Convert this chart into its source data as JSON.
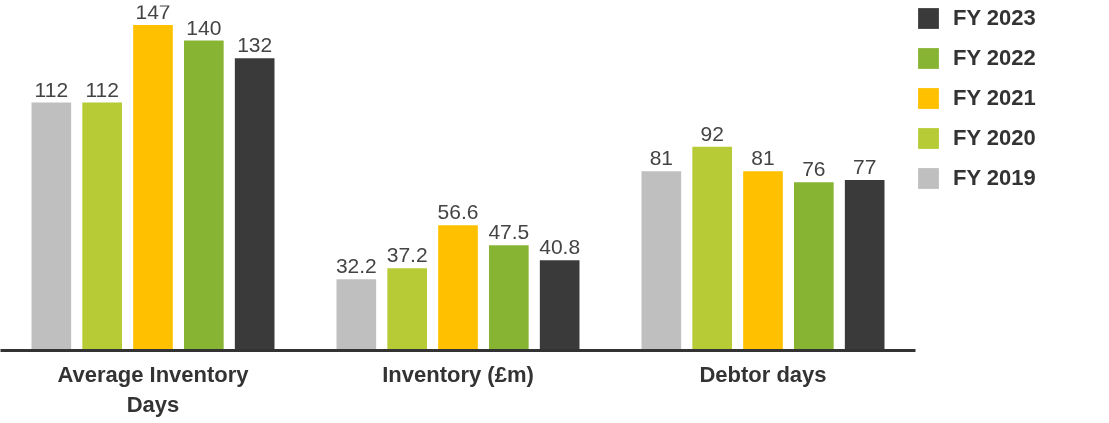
{
  "chart_data": {
    "type": "bar",
    "categories": [
      "Average Inventory Days",
      "Inventory (£m)",
      "Debtor days"
    ],
    "data_labels": true,
    "tick_labels": "x",
    "grid": false,
    "legend": "right",
    "series": [
      {
        "name": "FY 2019",
        "color": "#bfbfbf",
        "values": [
          112,
          32.2,
          81
        ]
      },
      {
        "name": "FY 2020",
        "color": "#b6cb35",
        "values": [
          112,
          37.2,
          92
        ]
      },
      {
        "name": "FY 2021",
        "color": "#ffc000",
        "values": [
          147,
          56.6,
          81
        ]
      },
      {
        "name": "FY 2022",
        "color": "#88b433",
        "values": [
          140,
          47.5,
          76
        ]
      },
      {
        "name": "FY 2023",
        "color": "#3a3a3a",
        "values": [
          132,
          40.8,
          77
        ]
      }
    ]
  }
}
